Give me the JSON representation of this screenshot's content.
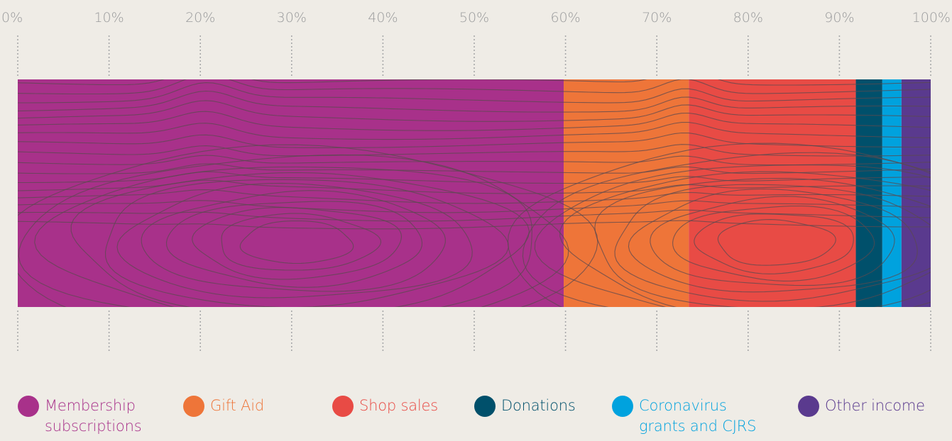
{
  "chart_data": {
    "type": "bar",
    "orientation": "horizontal",
    "stacked": true,
    "normalized_percent": true,
    "title": "",
    "xlabel": "",
    "ylabel": "",
    "xlim": [
      0,
      100
    ],
    "x_ticks": [
      "0%",
      "10%",
      "20%",
      "30%",
      "40%",
      "50%",
      "60%",
      "70%",
      "80%",
      "90%",
      "100%"
    ],
    "grid": "dotted vertical lines at ticks",
    "legend_placement": "bottom",
    "series": [
      {
        "name": "Membership\nsubscriptions",
        "value": 59.8,
        "color": "#a8318a"
      },
      {
        "name": "Gift Aid",
        "value": 13.7,
        "color": "#ee7539"
      },
      {
        "name": "Shop sales",
        "value": 18.3,
        "color": "#e84b45"
      },
      {
        "name": "Donations",
        "value": 2.9,
        "color": "#00506b"
      },
      {
        "name": "Coronavirus\ngrants and CJRS",
        "value": 2.1,
        "color": "#00a2de"
      },
      {
        "name": "Other income",
        "value": 3.2,
        "color": "#5a3a8e"
      }
    ]
  },
  "decoration": {
    "contour_color": "#5b4a4f"
  }
}
